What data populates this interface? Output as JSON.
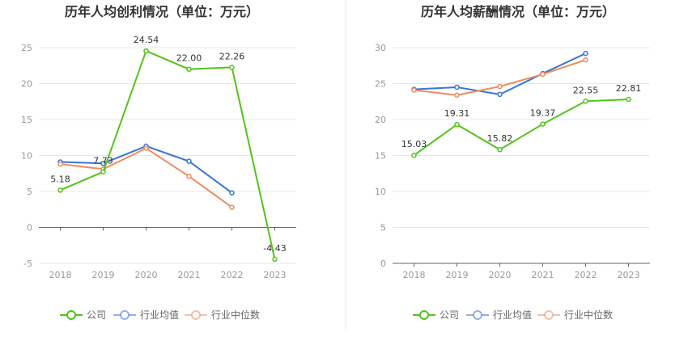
{
  "chart_data": [
    {
      "type": "line",
      "title": "历年人均创利情况（单位：万元）",
      "categories": [
        "2018",
        "2019",
        "2020",
        "2021",
        "2022",
        "2023"
      ],
      "ylim": [
        -5,
        25
      ],
      "yticks": [
        -5,
        0,
        5,
        10,
        15,
        20,
        25
      ],
      "grid": true,
      "legend_position": "bottom",
      "series": [
        {
          "name": "公司",
          "color": "#52c41a",
          "values": [
            5.18,
            7.73,
            24.54,
            22.0,
            22.26,
            -4.43
          ],
          "labels": [
            "5.18",
            "7.73",
            "24.54",
            "22.00",
            "22.26",
            "-4.43"
          ]
        },
        {
          "name": "行业均值",
          "color": "#3875d7",
          "values": [
            9.1,
            8.9,
            11.3,
            9.2,
            4.8,
            null
          ]
        },
        {
          "name": "行业中位数",
          "color": "#f08c5a",
          "values": [
            8.8,
            8.1,
            11.0,
            7.1,
            2.8,
            null
          ]
        }
      ]
    },
    {
      "type": "line",
      "title": "历年人均薪酬情况（单位：万元）",
      "categories": [
        "2018",
        "2019",
        "2020",
        "2021",
        "2022",
        "2023"
      ],
      "ylim": [
        0,
        30
      ],
      "yticks": [
        0,
        5,
        10,
        15,
        20,
        25,
        30
      ],
      "grid": true,
      "legend_position": "bottom",
      "series": [
        {
          "name": "公司",
          "color": "#52c41a",
          "values": [
            15.03,
            19.31,
            15.82,
            19.37,
            22.55,
            22.81
          ],
          "labels": [
            "15.03",
            "19.31",
            "15.82",
            "19.37",
            "22.55",
            "22.81"
          ]
        },
        {
          "name": "行业均值",
          "color": "#3875d7",
          "values": [
            24.2,
            24.5,
            23.5,
            26.4,
            29.2,
            null
          ]
        },
        {
          "name": "行业中位数",
          "color": "#f08c5a",
          "values": [
            24.1,
            23.4,
            24.6,
            26.3,
            28.3,
            null
          ]
        }
      ]
    }
  ]
}
